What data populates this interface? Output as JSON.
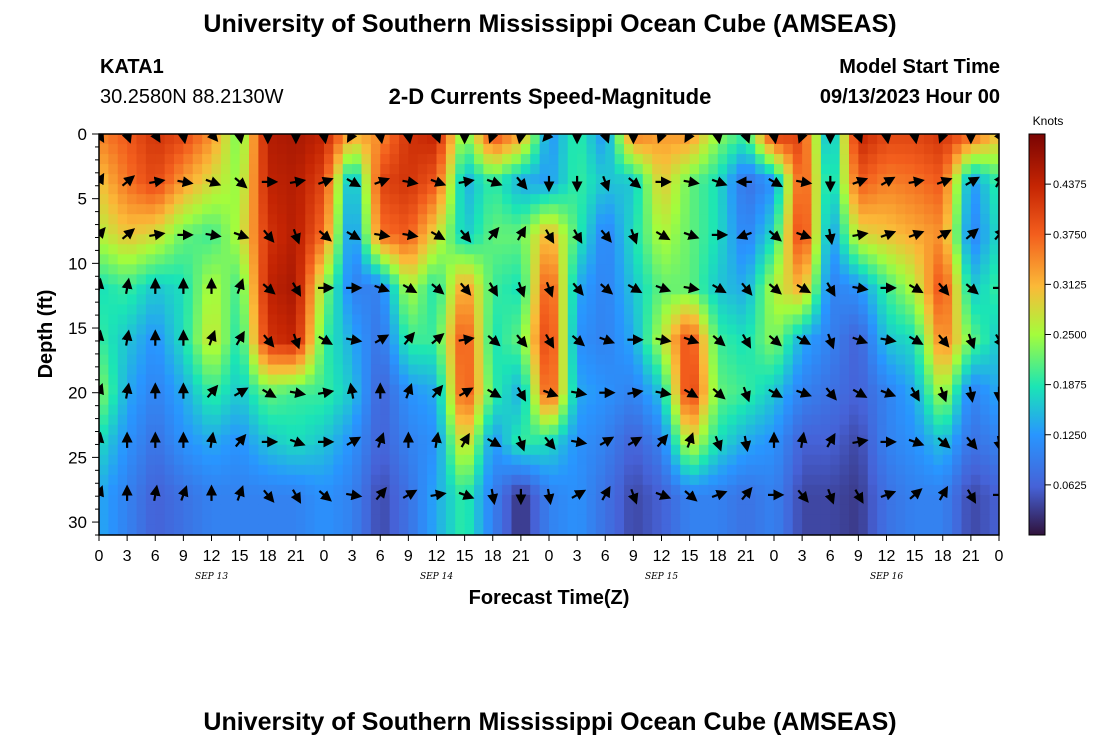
{
  "header": {
    "title": "University of Southern Mississippi Ocean Cube (AMSEAS)",
    "station_id": "KATA1",
    "station_coords": "30.2580N  88.2130W",
    "plot_title": "2-D Currents Speed-Magnitude",
    "model_start_label": "Model Start Time",
    "model_start_value": "09/13/2023 Hour 00"
  },
  "footer": {
    "title": "University of Southern Mississippi Ocean Cube (AMSEAS)"
  },
  "chart_data": {
    "type": "heatmap",
    "title": "2-D Currents Speed-Magnitude",
    "xlabel": "Forecast Time(Z)",
    "ylabel": "Depth (ft)",
    "xlim": [
      0,
      96
    ],
    "ylim": [
      31,
      0
    ],
    "x_tick_labels": [
      "0",
      "3",
      "6",
      "9",
      "12",
      "15",
      "18",
      "21",
      "0",
      "3",
      "6",
      "9",
      "12",
      "15",
      "18",
      "21",
      "0",
      "3",
      "6",
      "9",
      "12",
      "15",
      "18",
      "21",
      "0",
      "3",
      "6",
      "9",
      "12",
      "15",
      "18",
      "21",
      "0"
    ],
    "y_ticks": [
      0,
      5,
      10,
      15,
      20,
      25,
      30
    ],
    "date_labels": [
      {
        "hour": 12,
        "text": "SEP 13"
      },
      {
        "hour": 36,
        "text": "SEP 14"
      },
      {
        "hour": 60,
        "text": "SEP 15"
      },
      {
        "hour": 84,
        "text": "SEP 16"
      }
    ],
    "colorbar": {
      "label": "Knots",
      "min": 0.0,
      "max": 0.5,
      "tick_labels": [
        "0.4375",
        "0.3750",
        "0.3125",
        "0.2500",
        "0.1875",
        "0.1250",
        "0.0625"
      ],
      "tick_values": [
        0.4375,
        0.375,
        0.3125,
        0.25,
        0.1875,
        0.125,
        0.0625
      ]
    },
    "depths": [
      0.0,
      3.7,
      7.8,
      11.9,
      15.9,
      20.0,
      23.8,
      27.9
    ],
    "times": [
      0,
      3,
      6,
      9,
      12,
      15,
      18,
      21,
      24,
      27,
      30,
      33,
      36,
      39,
      42,
      45,
      48,
      51,
      54,
      57,
      60,
      63,
      66,
      69,
      72,
      75,
      78,
      81,
      84,
      87,
      90,
      93,
      96
    ],
    "speed_knots": [
      [
        0.35,
        0.38,
        0.42,
        0.4,
        0.34,
        0.22,
        0.45,
        0.46,
        0.44,
        0.32,
        0.34,
        0.42,
        0.44,
        0.22,
        0.4,
        0.33,
        0.12,
        0.2,
        0.12,
        0.36,
        0.33,
        0.34,
        0.24,
        0.2,
        0.42,
        0.4,
        0.12,
        0.44,
        0.4,
        0.4,
        0.42,
        0.38,
        0.3
      ],
      [
        0.3,
        0.36,
        0.4,
        0.33,
        0.28,
        0.24,
        0.44,
        0.45,
        0.4,
        0.12,
        0.4,
        0.42,
        0.38,
        0.14,
        0.2,
        0.14,
        0.13,
        0.2,
        0.16,
        0.16,
        0.3,
        0.22,
        0.18,
        0.08,
        0.12,
        0.4,
        0.15,
        0.38,
        0.35,
        0.36,
        0.38,
        0.12,
        0.2
      ],
      [
        0.26,
        0.3,
        0.28,
        0.22,
        0.2,
        0.26,
        0.42,
        0.45,
        0.36,
        0.1,
        0.36,
        0.38,
        0.28,
        0.16,
        0.22,
        0.22,
        0.32,
        0.2,
        0.1,
        0.18,
        0.26,
        0.22,
        0.18,
        0.1,
        0.18,
        0.42,
        0.12,
        0.28,
        0.3,
        0.32,
        0.34,
        0.1,
        0.18
      ],
      [
        0.18,
        0.2,
        0.16,
        0.18,
        0.26,
        0.2,
        0.44,
        0.46,
        0.24,
        0.1,
        0.1,
        0.26,
        0.18,
        0.34,
        0.2,
        0.18,
        0.4,
        0.14,
        0.1,
        0.16,
        0.22,
        0.22,
        0.16,
        0.14,
        0.26,
        0.32,
        0.1,
        0.12,
        0.2,
        0.26,
        0.4,
        0.16,
        0.2
      ],
      [
        0.2,
        0.16,
        0.12,
        0.18,
        0.28,
        0.18,
        0.42,
        0.44,
        0.2,
        0.14,
        0.08,
        0.2,
        0.2,
        0.4,
        0.18,
        0.22,
        0.42,
        0.12,
        0.1,
        0.14,
        0.26,
        0.4,
        0.2,
        0.18,
        0.24,
        0.14,
        0.1,
        0.06,
        0.16,
        0.18,
        0.36,
        0.22,
        0.16
      ],
      [
        0.24,
        0.14,
        0.1,
        0.14,
        0.2,
        0.16,
        0.22,
        0.2,
        0.2,
        0.16,
        0.06,
        0.12,
        0.14,
        0.4,
        0.2,
        0.14,
        0.4,
        0.14,
        0.12,
        0.1,
        0.16,
        0.42,
        0.22,
        0.2,
        0.16,
        0.1,
        0.08,
        0.06,
        0.1,
        0.14,
        0.26,
        0.1,
        0.14
      ],
      [
        0.18,
        0.12,
        0.08,
        0.12,
        0.14,
        0.12,
        0.16,
        0.18,
        0.16,
        0.12,
        0.06,
        0.1,
        0.12,
        0.3,
        0.12,
        0.2,
        0.18,
        0.12,
        0.1,
        0.06,
        0.1,
        0.28,
        0.18,
        0.14,
        0.12,
        0.06,
        0.06,
        0.04,
        0.1,
        0.12,
        0.16,
        0.08,
        0.1
      ],
      [
        0.14,
        0.1,
        0.06,
        0.08,
        0.1,
        0.1,
        0.1,
        0.1,
        0.12,
        0.1,
        0.04,
        0.08,
        0.14,
        0.2,
        0.1,
        0.02,
        0.1,
        0.12,
        0.08,
        0.04,
        0.06,
        0.1,
        0.1,
        0.08,
        0.1,
        0.04,
        0.04,
        0.03,
        0.08,
        0.1,
        0.1,
        0.04,
        0.06
      ]
    ],
    "direction_deg": [
      [
        150,
        160,
        150,
        170,
        140,
        170,
        180,
        180,
        170,
        210,
        170,
        170,
        160,
        180,
        200,
        190,
        220,
        180,
        160,
        180,
        200,
        210,
        170,
        160,
        170,
        200,
        180,
        160,
        170,
        170,
        200,
        180,
        150
      ],
      [
        30,
        50,
        80,
        100,
        110,
        130,
        90,
        80,
        70,
        120,
        70,
        100,
        110,
        80,
        110,
        140,
        180,
        180,
        160,
        130,
        90,
        100,
        110,
        270,
        120,
        100,
        180,
        70,
        60,
        80,
        70,
        60,
        30
      ],
      [
        40,
        50,
        80,
        90,
        100,
        110,
        140,
        160,
        130,
        120,
        100,
        100,
        120,
        140,
        40,
        30,
        150,
        150,
        140,
        160,
        120,
        110,
        90,
        250,
        130,
        110,
        170,
        80,
        70,
        70,
        60,
        50,
        40
      ],
      [
        10,
        10,
        0,
        0,
        0,
        20,
        130,
        150,
        90,
        90,
        110,
        120,
        130,
        140,
        150,
        160,
        160,
        140,
        130,
        120,
        110,
        100,
        120,
        140,
        130,
        120,
        150,
        100,
        90,
        120,
        140,
        130,
        90
      ],
      [
        10,
        10,
        0,
        0,
        20,
        30,
        140,
        160,
        120,
        100,
        60,
        40,
        50,
        80,
        130,
        140,
        150,
        130,
        110,
        90,
        100,
        110,
        130,
        150,
        130,
        120,
        160,
        110,
        100,
        120,
        140,
        160,
        150
      ],
      [
        20,
        10,
        0,
        0,
        40,
        60,
        120,
        100,
        80,
        350,
        0,
        20,
        40,
        60,
        120,
        150,
        110,
        100,
        90,
        80,
        100,
        120,
        130,
        160,
        120,
        110,
        140,
        120,
        110,
        150,
        160,
        170,
        180
      ],
      [
        10,
        0,
        0,
        0,
        10,
        40,
        90,
        110,
        90,
        60,
        20,
        0,
        10,
        30,
        120,
        160,
        140,
        100,
        60,
        60,
        40,
        20,
        160,
        170,
        0,
        10,
        30,
        80,
        90,
        110,
        130,
        140,
        170
      ],
      [
        20,
        0,
        10,
        20,
        0,
        20,
        140,
        150,
        130,
        100,
        40,
        60,
        80,
        110,
        170,
        180,
        170,
        60,
        30,
        160,
        110,
        130,
        70,
        40,
        90,
        140,
        160,
        150,
        70,
        50,
        30,
        150,
        90
      ]
    ]
  }
}
